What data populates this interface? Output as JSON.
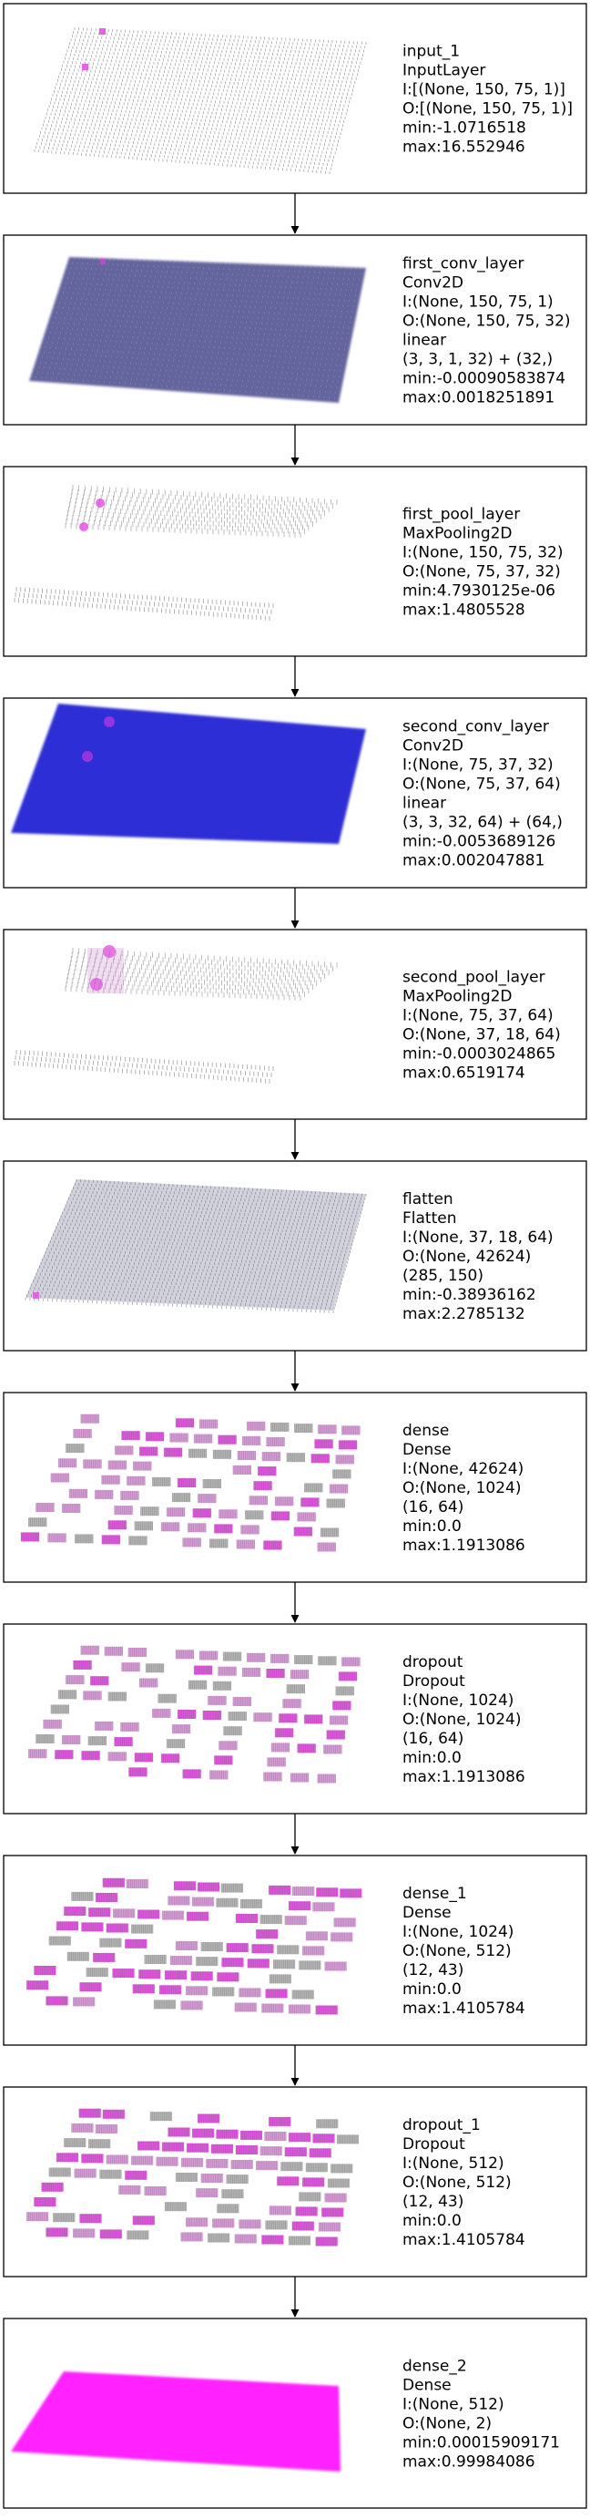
{
  "colors": {
    "border": "#000000",
    "background": "#ffffff",
    "input_dots": "#6e6e6e",
    "conv1_fill": "#4b4b8c",
    "conv2_fill": "#1a1ad2",
    "pool_dots": "#787878",
    "dense_magenta": "#d21ed2",
    "dense_pink": "#c878c8",
    "dense_gray": "#9a9a9a",
    "highlight": "#e63ce6",
    "output_fill": "#ff14ff"
  },
  "layers": [
    {
      "visual": "input",
      "lines": [
        "input_1",
        "InputLayer",
        "I:[(None, 150, 75, 1)]",
        "O:[(None, 150, 75, 1)]",
        "min:-1.0716518",
        "max:16.552946"
      ]
    },
    {
      "visual": "conv1",
      "lines": [
        "first_conv_layer",
        "Conv2D",
        "I:(None, 150, 75, 1)",
        "O:(None, 150, 75, 32)",
        "linear",
        "(3, 3, 1, 32) + (32,)",
        "min:-0.00090583874",
        "max:0.0018251891"
      ]
    },
    {
      "visual": "pool1",
      "lines": [
        "first_pool_layer",
        "MaxPooling2D",
        "I:(None, 150, 75, 32)",
        "O:(None, 75, 37, 32)",
        "min:4.7930125e-06",
        "max:1.4805528"
      ]
    },
    {
      "visual": "conv2",
      "lines": [
        "second_conv_layer",
        "Conv2D",
        "I:(None, 75, 37, 32)",
        "O:(None, 75, 37, 64)",
        "linear",
        "(3, 3, 32, 64) + (64,)",
        "min:-0.0053689126",
        "max:0.002047881"
      ]
    },
    {
      "visual": "pool2",
      "lines": [
        "second_pool_layer",
        "MaxPooling2D",
        "I:(None, 75, 37, 64)",
        "O:(None, 37, 18, 64)",
        "min:-0.0003024865",
        "max:0.6519174"
      ]
    },
    {
      "visual": "flatten",
      "lines": [
        "flatten",
        "Flatten",
        "I:(None, 37, 18, 64)",
        "O:(None, 42624)",
        "(285, 150)",
        "min:-0.38936162",
        "max:2.2785132"
      ]
    },
    {
      "visual": "dense_a",
      "lines": [
        "dense",
        "Dense",
        "I:(None, 42624)",
        "O:(None, 1024)",
        "(16, 64)",
        "min:0.0",
        "max:1.1913086"
      ]
    },
    {
      "visual": "dense_a",
      "lines": [
        "dropout",
        "Dropout",
        "I:(None, 1024)",
        "O:(None, 1024)",
        "(16, 64)",
        "min:0.0",
        "max:1.1913086"
      ]
    },
    {
      "visual": "dense_b",
      "lines": [
        "dense_1",
        "Dense",
        "I:(None, 1024)",
        "O:(None, 512)",
        "(12, 43)",
        "min:0.0",
        "max:1.4105784"
      ]
    },
    {
      "visual": "dense_b",
      "lines": [
        "dropout_1",
        "Dropout",
        "I:(None, 512)",
        "O:(None, 512)",
        "(12, 43)",
        "min:0.0",
        "max:1.4105784"
      ]
    },
    {
      "visual": "output",
      "lines": [
        "dense_2",
        "Dense",
        "I:(None, 512)",
        "O:(None, 2)",
        "min:0.00015909171",
        "max:0.99984086"
      ]
    }
  ]
}
